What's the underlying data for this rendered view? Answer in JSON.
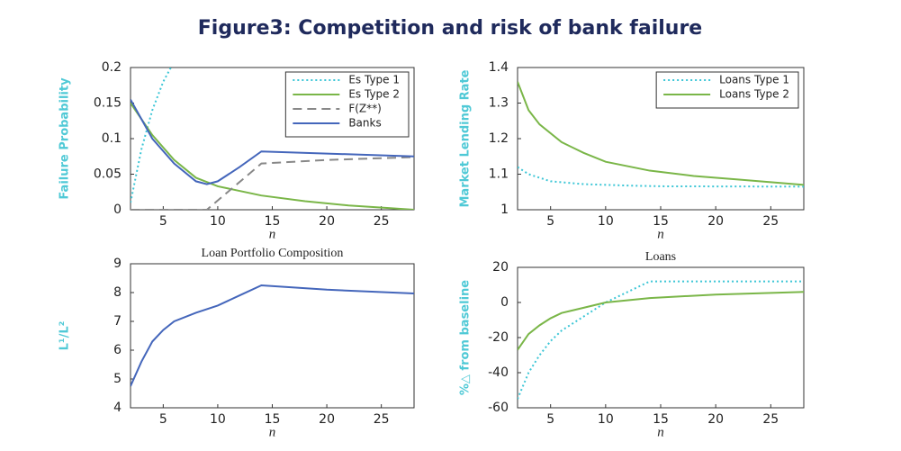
{
  "title": "Figure3: Competition and risk of bank failure",
  "chart_data": [
    {
      "type": "line",
      "y_label": "Failure Probability",
      "x_label": "n",
      "xlim": [
        2,
        28
      ],
      "xticks": [
        5,
        10,
        15,
        20,
        25
      ],
      "ylim": [
        0,
        0.2
      ],
      "yticks": [
        0,
        0.05,
        0.1,
        0.15,
        0.2
      ],
      "legend": "upper right",
      "series": [
        {
          "name": "Es Type 1",
          "color": "#3cc6d6",
          "style": "dotted",
          "x": [
            2,
            3,
            4,
            5,
            5.7
          ],
          "values": [
            0.01,
            0.085,
            0.14,
            0.18,
            0.2
          ]
        },
        {
          "name": "Es Type 2",
          "color": "#7ab648",
          "style": "solid",
          "x": [
            2,
            4,
            6,
            8,
            10,
            14,
            18,
            22,
            26,
            28
          ],
          "values": [
            0.15,
            0.105,
            0.07,
            0.045,
            0.033,
            0.02,
            0.012,
            0.006,
            0.002,
            0
          ]
        },
        {
          "name": "F(Z**)",
          "color": "#888888",
          "style": "dashed",
          "x": [
            2,
            9,
            14,
            20,
            28
          ],
          "values": [
            0,
            0,
            0.065,
            0.07,
            0.074
          ]
        },
        {
          "name": "Banks",
          "color": "#4466bb",
          "style": "solid",
          "x": [
            2,
            4,
            6,
            8,
            9,
            10,
            12,
            14,
            20,
            28
          ],
          "values": [
            0.155,
            0.1,
            0.065,
            0.04,
            0.036,
            0.04,
            0.06,
            0.082,
            0.079,
            0.075
          ]
        }
      ]
    },
    {
      "type": "line",
      "y_label": "Market Lending Rate",
      "x_label": "n",
      "xlim": [
        2,
        28
      ],
      "xticks": [
        5,
        10,
        15,
        20,
        25
      ],
      "ylim": [
        1,
        1.4
      ],
      "yticks": [
        1,
        1.1,
        1.2,
        1.3,
        1.4
      ],
      "legend": "upper right",
      "series": [
        {
          "name": "Loans Type 1",
          "color": "#3cc6d6",
          "style": "dotted",
          "x": [
            2,
            3,
            5,
            8,
            12,
            15,
            28
          ],
          "values": [
            1.12,
            1.1,
            1.08,
            1.072,
            1.068,
            1.066,
            1.065
          ]
        },
        {
          "name": "Loans Type 2",
          "color": "#7ab648",
          "style": "solid",
          "x": [
            2,
            3,
            4,
            6,
            8,
            10,
            14,
            18,
            22,
            28
          ],
          "values": [
            1.36,
            1.28,
            1.24,
            1.19,
            1.16,
            1.135,
            1.11,
            1.095,
            1.085,
            1.07
          ]
        }
      ]
    },
    {
      "type": "line",
      "title": "Loan Portfolio Composition",
      "y_label": "L¹/L²",
      "x_label": "n",
      "xlim": [
        2,
        28
      ],
      "xticks": [
        5,
        10,
        15,
        20,
        25
      ],
      "ylim": [
        4,
        9
      ],
      "yticks": [
        4,
        5,
        6,
        7,
        8,
        9
      ],
      "series": [
        {
          "color": "#4466bb",
          "style": "solid",
          "x": [
            2,
            3,
            4,
            5,
            6,
            8,
            10,
            12,
            14,
            20,
            28
          ],
          "values": [
            4.75,
            5.6,
            6.3,
            6.7,
            7.0,
            7.3,
            7.55,
            7.9,
            8.25,
            8.1,
            7.97
          ]
        }
      ]
    },
    {
      "type": "line",
      "title": "Loans",
      "y_label": "%△ from baseline",
      "x_label": "n",
      "xlim": [
        2,
        28
      ],
      "xticks": [
        5,
        10,
        15,
        20,
        25
      ],
      "ylim": [
        -60,
        20
      ],
      "yticks": [
        -60,
        -40,
        -20,
        0,
        20
      ],
      "series": [
        {
          "color": "#3cc6d6",
          "style": "dotted",
          "x": [
            2,
            3,
            4,
            5,
            6,
            8,
            10,
            12,
            14,
            28
          ],
          "values": [
            -55,
            -40,
            -30,
            -22,
            -16,
            -8,
            0,
            6,
            12,
            12
          ]
        },
        {
          "color": "#7ab648",
          "style": "solid",
          "x": [
            2,
            3,
            4,
            5,
            6,
            8,
            10,
            14,
            20,
            28
          ],
          "values": [
            -27,
            -18,
            -13,
            -9,
            -6,
            -3,
            0,
            2.5,
            4.5,
            6
          ]
        }
      ]
    }
  ]
}
